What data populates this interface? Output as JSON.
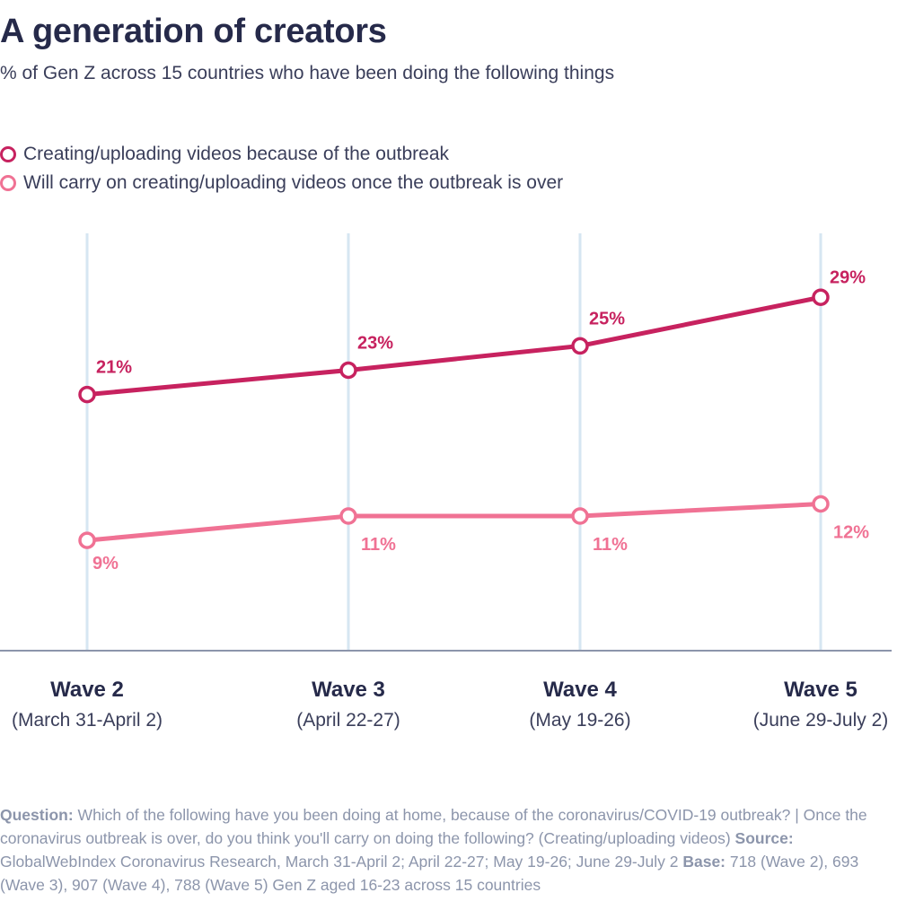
{
  "title": "A generation of creators",
  "subtitle": "% of Gen Z across 15 countries who have been doing the following things",
  "legend": [
    "Creating/uploading videos because of the outbreak",
    "Will carry on creating/uploading videos once the outbreak is over"
  ],
  "categories": [
    {
      "wave": "Wave 2",
      "dates": "(March 31-April 2)"
    },
    {
      "wave": "Wave 3",
      "dates": "(April 22-27)"
    },
    {
      "wave": "Wave 4",
      "dates": "(May 19-26)"
    },
    {
      "wave": "Wave 5",
      "dates": "(June 29-July 2)"
    }
  ],
  "colors": {
    "series1": "#c7225f",
    "series2": "#f07294",
    "grid": "#d6e6f2",
    "axis": "#8c95ab"
  },
  "chart_data": {
    "type": "line",
    "title": "A generation of creators",
    "subtitle": "% of Gen Z across 15 countries who have been doing the following things",
    "categories": [
      "Wave 2",
      "Wave 3",
      "Wave 4",
      "Wave 5"
    ],
    "series": [
      {
        "name": "Creating/uploading videos because of the outbreak",
        "values": [
          21,
          23,
          25,
          29
        ],
        "labels": [
          "21%",
          "23%",
          "25%",
          "29%"
        ]
      },
      {
        "name": "Will carry on creating/uploading videos once the outbreak is over",
        "values": [
          9,
          11,
          11,
          12
        ],
        "labels": [
          "9%",
          "11%",
          "11%",
          "12%"
        ]
      }
    ],
    "ylim": [
      0,
      35
    ],
    "grid": true,
    "legend_position": "top-left"
  },
  "footnote": {
    "question_label": "Question:",
    "question_text": "Which of the following have you been doing at home, because of the coronavirus/COVID-19 outbreak? | Once the coronavirus outbreak is over, do you think you'll carry on doing the following? (Creating/uploading videos)",
    "source_label": "Source:",
    "source_text": "GlobalWebIndex Coronavirus Research, March 31-April 2; April 22-27; May 19-26; June 29-July 2",
    "base_label": "Base:",
    "base_text": "718 (Wave 2), 693 (Wave 3), 907 (Wave 4), 788 (Wave 5) Gen Z aged 16-23 across 15 countries"
  }
}
